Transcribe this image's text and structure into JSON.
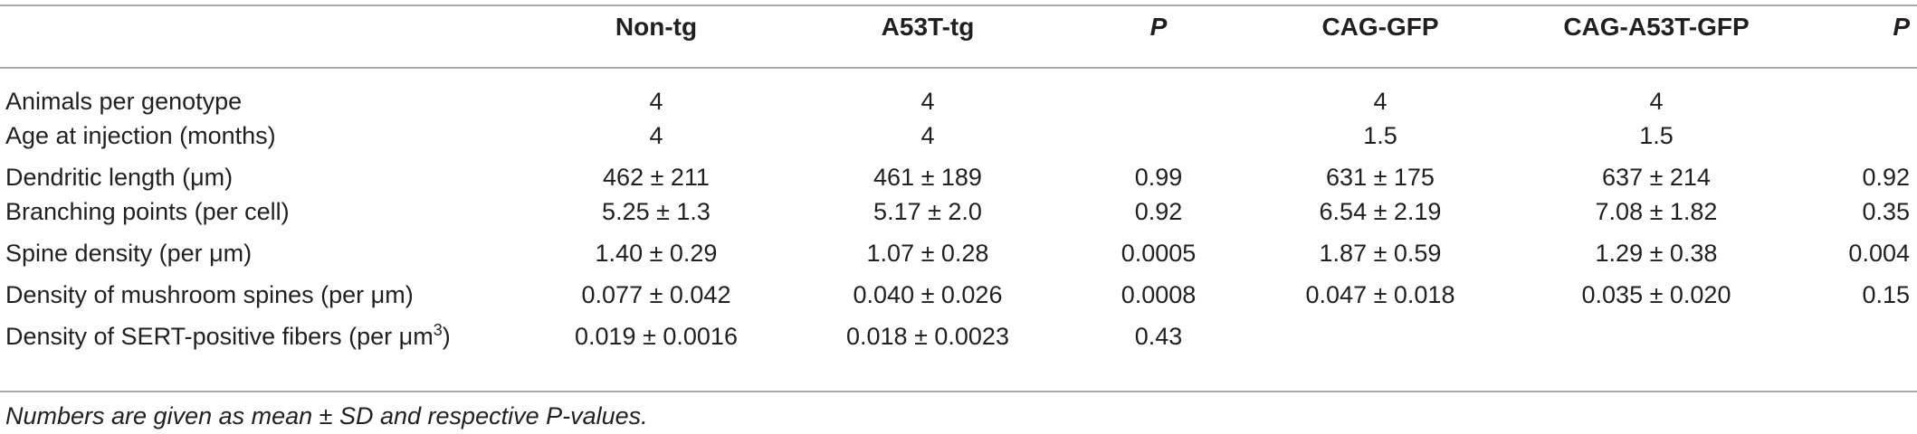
{
  "table": {
    "headers": {
      "row_label": "",
      "non_tg": "Non-tg",
      "a53t_tg": "A53T-tg",
      "p1": "P",
      "cag_gfp": "CAG-GFP",
      "cag_a53t_gfp": "CAG-A53T-GFP",
      "p2": "P"
    },
    "rows": [
      {
        "label": "Animals per genotype",
        "non_tg": "4",
        "a53t_tg": "4",
        "p1": "",
        "cag_gfp": "4",
        "cag_a53t_gfp": "4",
        "p2": ""
      },
      {
        "label": "Age at injection (months)",
        "non_tg": "4",
        "a53t_tg": "4",
        "p1": "",
        "cag_gfp": "1.5",
        "cag_a53t_gfp": "1.5",
        "p2": ""
      },
      {
        "label": "Dendritic length (μm)",
        "non_tg": "462 ± 211",
        "a53t_tg": "461 ± 189",
        "p1": "0.99",
        "cag_gfp": "631 ± 175",
        "cag_a53t_gfp": "637 ± 214",
        "p2": "0.92"
      },
      {
        "label": "Branching points (per cell)",
        "non_tg": "5.25 ± 1.3",
        "a53t_tg": "5.17 ± 2.0",
        "p1": "0.92",
        "cag_gfp": "6.54 ± 2.19",
        "cag_a53t_gfp": "7.08 ± 1.82",
        "p2": "0.35"
      },
      {
        "label": "Spine density (per μm)",
        "non_tg": "1.40 ± 0.29",
        "a53t_tg": "1.07 ± 0.28",
        "p1": "0.0005",
        "cag_gfp": "1.87 ± 0.59",
        "cag_a53t_gfp": "1.29 ± 0.38",
        "p2": "0.004"
      },
      {
        "label": "Density of mushroom spines (per μm)",
        "non_tg": "0.077 ± 0.042",
        "a53t_tg": "0.040 ± 0.026",
        "p1": "0.0008",
        "cag_gfp": "0.047 ± 0.018",
        "cag_a53t_gfp": "0.035 ± 0.020",
        "p2": "0.15"
      },
      {
        "label": "Density of SERT-positive fibers (per μm",
        "label_sup": "3",
        "label_suffix": ")",
        "non_tg": "0.019 ± 0.0016",
        "a53t_tg": "0.018 ± 0.0023",
        "p1": "0.43",
        "cag_gfp": "",
        "cag_a53t_gfp": "",
        "p2": ""
      }
    ],
    "footnote": "Numbers are given as mean ± SD and respective P-values."
  }
}
